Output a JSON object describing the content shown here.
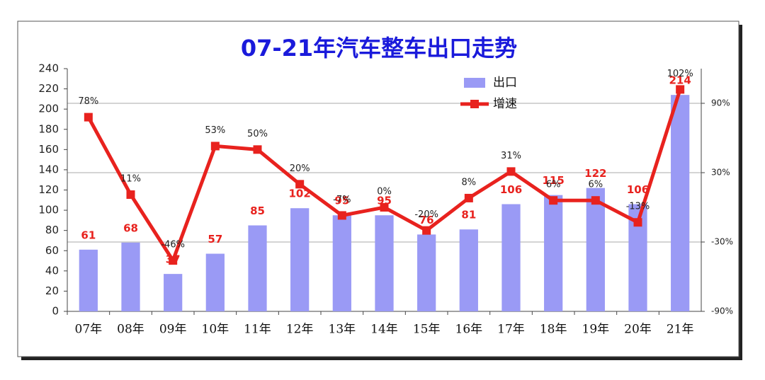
{
  "chart_data": {
    "type": "combo",
    "title": "07-21年汽车整车出口走势",
    "categories": [
      "07年",
      "08年",
      "09年",
      "10年",
      "11年",
      "12年",
      "13年",
      "14年",
      "15年",
      "16年",
      "17年",
      "18年",
      "19年",
      "20年",
      "21年"
    ],
    "series": [
      {
        "name": "出口",
        "type": "bar",
        "color": "#9a9af5",
        "values": [
          61,
          68,
          37,
          57,
          85,
          102,
          95,
          95,
          76,
          81,
          106,
          115,
          122,
          106,
          214
        ]
      },
      {
        "name": "增速",
        "type": "line",
        "axis": "y2",
        "color": "#e8221e",
        "values": [
          78,
          11,
          -46,
          53,
          50,
          20,
          -7,
          0,
          -20,
          8,
          31,
          6,
          6,
          -13,
          102
        ],
        "value_labels": [
          "78%",
          "11%",
          "-46%",
          "53%",
          "50%",
          "20%",
          "-7%",
          "0%",
          "-20%",
          "8%",
          "31%",
          "6%",
          "6%",
          "-13%",
          "102%"
        ]
      }
    ],
    "ylim": [
      0,
      240
    ],
    "yticks": [
      0,
      20,
      40,
      60,
      80,
      100,
      120,
      140,
      160,
      180,
      200,
      220,
      240
    ],
    "y2lim": [
      -90,
      120
    ],
    "y2ticks": [
      {
        "value": -90,
        "label": "-90%"
      },
      {
        "value": -30,
        "label": "-30%"
      },
      {
        "value": 30,
        "label": "30%"
      },
      {
        "value": 90,
        "label": "90%"
      }
    ],
    "grid": true,
    "legend": "top-right"
  }
}
